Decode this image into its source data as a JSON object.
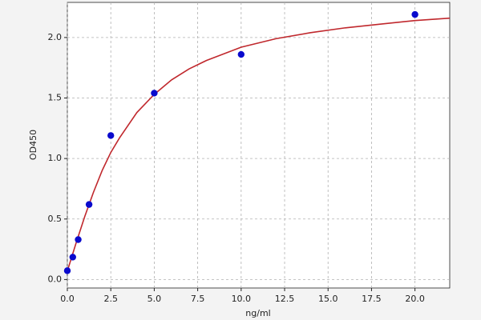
{
  "chart_data": {
    "type": "scatter",
    "xlabel": "ng/ml",
    "ylabel": "OD450",
    "xlim": [
      0,
      22
    ],
    "ylim": [
      -0.07,
      2.29
    ],
    "xticks": [
      {
        "value": 0,
        "label": "0.0"
      },
      2.5,
      {
        "value": 5,
        "label": "5.0"
      },
      7.5,
      {
        "value": 10,
        "label": "10.0"
      },
      12.5,
      {
        "value": 15,
        "label": "15.0"
      },
      17.5,
      {
        "value": 20,
        "label": "20.0"
      }
    ],
    "yticks": [
      {
        "value": 0,
        "label": "0.0"
      },
      0.5,
      {
        "value": 1,
        "label": "1.0"
      },
      1.5,
      {
        "value": 2,
        "label": "2.0"
      }
    ],
    "grid": true,
    "series": [
      {
        "style": "points",
        "color": "#0a0acd",
        "x": [
          0,
          0.3125,
          0.625,
          1.25,
          2.5,
          5,
          10,
          20
        ],
        "values": [
          0.073,
          0.185,
          0.33,
          0.62,
          1.19,
          1.54,
          1.86,
          2.19
        ]
      },
      {
        "style": "line",
        "color": "#c0282d",
        "x": [
          0,
          0.5,
          1,
          1.5,
          2,
          2.5,
          3,
          4,
          5,
          6,
          7,
          8,
          10,
          12,
          14,
          16,
          18,
          20,
          22
        ],
        "values": [
          0.07,
          0.3,
          0.52,
          0.72,
          0.9,
          1.05,
          1.17,
          1.38,
          1.53,
          1.65,
          1.74,
          1.81,
          1.92,
          1.99,
          2.04,
          2.08,
          2.11,
          2.14,
          2.16
        ]
      }
    ]
  }
}
